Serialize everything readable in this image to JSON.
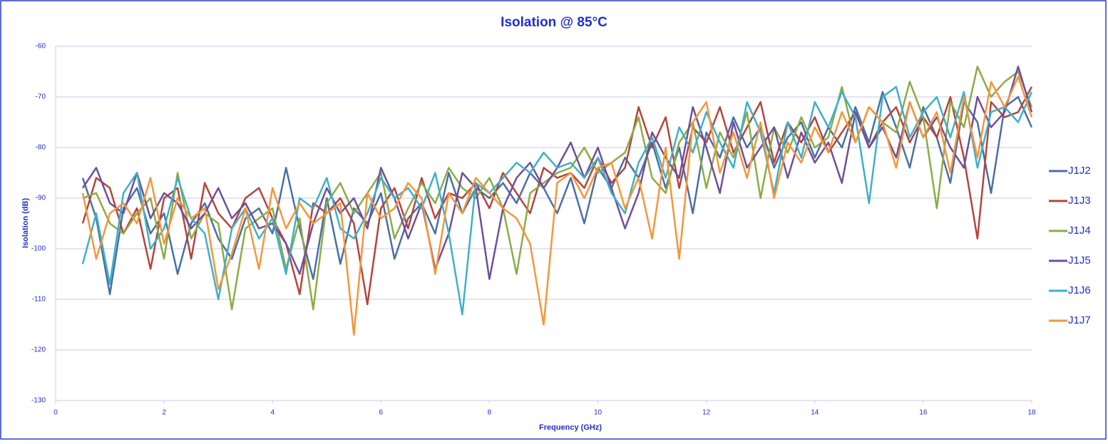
{
  "chart_data": {
    "type": "line",
    "title": "Isolation @ 85°C",
    "x_label": "Frequency (GHz)",
    "y_label": "Isolation (dB)",
    "xlim": [
      0,
      18
    ],
    "xticks": [
      0,
      2,
      4,
      6,
      8,
      10,
      12,
      14,
      16,
      18
    ],
    "ylim": [
      -130,
      -60
    ],
    "yticks": [
      -130,
      -120,
      -110,
      -100,
      -90,
      -80,
      -70,
      -60
    ],
    "grid": true,
    "legend": "right",
    "x": [
      0.5,
      0.75,
      1,
      1.25,
      1.5,
      1.75,
      2,
      2.25,
      2.5,
      2.75,
      3,
      3.25,
      3.5,
      3.75,
      4,
      4.25,
      4.5,
      4.75,
      5,
      5.25,
      5.5,
      5.75,
      6,
      6.25,
      6.5,
      6.75,
      7,
      7.25,
      7.5,
      7.75,
      8,
      8.25,
      8.5,
      8.75,
      9,
      9.25,
      9.5,
      9.75,
      10,
      10.25,
      10.5,
      10.75,
      11,
      11.25,
      11.5,
      11.75,
      12,
      12.25,
      12.5,
      12.75,
      13,
      13.25,
      13.5,
      13.75,
      14,
      14.25,
      14.5,
      14.75,
      15,
      15.25,
      15.5,
      15.75,
      16,
      16.25,
      16.5,
      16.75,
      17,
      17.25,
      17.5,
      17.75,
      18
    ],
    "series": [
      {
        "name": "J1J2",
        "color": "#4a6fa5",
        "values": [
          -86,
          -94,
          -109,
          -92,
          -88,
          -97,
          -93,
          -105,
          -95,
          -91,
          -98,
          -102,
          -94,
          -92,
          -97,
          -84,
          -96,
          -106,
          -90,
          -103,
          -92,
          -95,
          -89,
          -102,
          -94,
          -91,
          -97,
          -85,
          -93,
          -88,
          -90,
          -87,
          -91,
          -85,
          -88,
          -93,
          -86,
          -95,
          -84,
          -88,
          -82,
          -86,
          -79,
          -88,
          -80,
          -93,
          -77,
          -82,
          -74,
          -80,
          -76,
          -84,
          -78,
          -75,
          -82,
          -76,
          -80,
          -72,
          -79,
          -69,
          -76,
          -84,
          -72,
          -78,
          -87,
          -71,
          -75,
          -89,
          -72,
          -70,
          -76
        ]
      },
      {
        "name": "J1J3",
        "color": "#b5443c",
        "values": [
          -95,
          -86,
          -88,
          -97,
          -92,
          -104,
          -90,
          -88,
          -102,
          -87,
          -93,
          -96,
          -90,
          -88,
          -94,
          -99,
          -109,
          -91,
          -93,
          -90,
          -95,
          -111,
          -92,
          -88,
          -96,
          -86,
          -94,
          -89,
          -90,
          -87,
          -92,
          -85,
          -89,
          -93,
          -84,
          -86,
          -85,
          -88,
          -82,
          -87,
          -84,
          -72,
          -80,
          -74,
          -88,
          -76,
          -79,
          -72,
          -81,
          -76,
          -71,
          -83,
          -75,
          -79,
          -74,
          -81,
          -77,
          -73,
          -80,
          -75,
          -72,
          -79,
          -74,
          -78,
          -70,
          -82,
          -98,
          -71,
          -74,
          -73,
          -68
        ]
      },
      {
        "name": "J1J4",
        "color": "#8cac44",
        "values": [
          -90,
          -89,
          -95,
          -97,
          -93,
          -90,
          -102,
          -85,
          -98,
          -93,
          -95,
          -112,
          -96,
          -94,
          -92,
          -104,
          -94,
          -112,
          -91,
          -87,
          -93,
          -89,
          -85,
          -98,
          -92,
          -87,
          -91,
          -84,
          -88,
          -90,
          -86,
          -92,
          -105,
          -89,
          -87,
          -85,
          -84,
          -80,
          -85,
          -83,
          -81,
          -74,
          -86,
          -89,
          -79,
          -75,
          -88,
          -77,
          -82,
          -73,
          -90,
          -76,
          -81,
          -74,
          -80,
          -78,
          -68,
          -79,
          -72,
          -75,
          -77,
          -67,
          -74,
          -92,
          -71,
          -76,
          -64,
          -70,
          -67,
          -65,
          -72
        ]
      },
      {
        "name": "J1J5",
        "color": "#6f4f9a",
        "values": [
          -88,
          -84,
          -91,
          -93,
          -85,
          -94,
          -89,
          -91,
          -96,
          -93,
          -88,
          -94,
          -91,
          -96,
          -95,
          -99,
          -105,
          -95,
          -88,
          -93,
          -90,
          -96,
          -84,
          -90,
          -98,
          -91,
          -104,
          -97,
          -85,
          -88,
          -106,
          -92,
          -86,
          -83,
          -88,
          -84,
          -79,
          -86,
          -80,
          -88,
          -96,
          -89,
          -77,
          -82,
          -86,
          -72,
          -80,
          -89,
          -75,
          -84,
          -80,
          -76,
          -86,
          -77,
          -83,
          -79,
          -87,
          -73,
          -80,
          -76,
          -82,
          -71,
          -78,
          -74,
          -80,
          -84,
          -70,
          -76,
          -73,
          -64,
          -73
        ]
      },
      {
        "name": "J1J6",
        "color": "#3fb0c8",
        "values": [
          -103,
          -93,
          -107,
          -89,
          -85,
          -100,
          -96,
          -86,
          -94,
          -97,
          -110,
          -96,
          -92,
          -98,
          -94,
          -105,
          -90,
          -92,
          -86,
          -96,
          -98,
          -93,
          -86,
          -90,
          -88,
          -92,
          -85,
          -97,
          -113,
          -87,
          -89,
          -86,
          -83,
          -85,
          -81,
          -84,
          -83,
          -86,
          -82,
          -89,
          -93,
          -83,
          -78,
          -86,
          -76,
          -81,
          -73,
          -79,
          -84,
          -71,
          -77,
          -89,
          -75,
          -82,
          -71,
          -76,
          -69,
          -74,
          -91,
          -70,
          -68,
          -78,
          -73,
          -70,
          -78,
          -69,
          -84,
          -73,
          -72,
          -75,
          -69
        ]
      },
      {
        "name": "J1J7",
        "color": "#f5963a",
        "values": [
          -89,
          -102,
          -93,
          -91,
          -95,
          -86,
          -99,
          -90,
          -94,
          -92,
          -108,
          -101,
          -92,
          -104,
          -88,
          -96,
          -91,
          -95,
          -93,
          -91,
          -117,
          -89,
          -94,
          -92,
          -87,
          -90,
          -105,
          -89,
          -93,
          -86,
          -89,
          -92,
          -94,
          -99,
          -115,
          -87,
          -85,
          -90,
          -84,
          -83,
          -92,
          -86,
          -98,
          -80,
          -102,
          -75,
          -71,
          -85,
          -77,
          -86,
          -75,
          -90,
          -79,
          -83,
          -76,
          -81,
          -73,
          -79,
          -72,
          -75,
          -84,
          -71,
          -78,
          -73,
          -85,
          -70,
          -82,
          -67,
          -72,
          -66,
          -74
        ]
      }
    ]
  }
}
